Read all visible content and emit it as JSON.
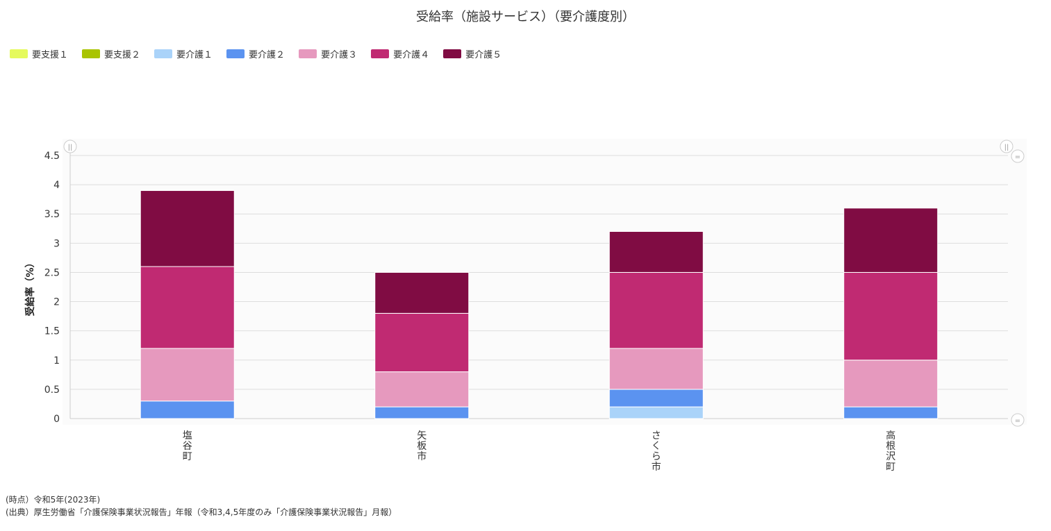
{
  "title": "受給率（施設サービス）（要介護度別）",
  "legend": [
    {
      "name": "要支援１",
      "color": "#e5fa5c"
    },
    {
      "name": "要支援２",
      "color": "#a9c400"
    },
    {
      "name": "要介護１",
      "color": "#aad3f9"
    },
    {
      "name": "要介護２",
      "color": "#5b93f0"
    },
    {
      "name": "要介護３",
      "color": "#e699be"
    },
    {
      "name": "要介護４",
      "color": "#c02a72"
    },
    {
      "name": "要介護５",
      "color": "#800c43"
    }
  ],
  "chart_data": {
    "type": "bar",
    "stacked": true,
    "categories": [
      "塩谷町",
      "矢板市",
      "さくら市",
      "高根沢町"
    ],
    "ylabel": "受給率（%）",
    "ylim": [
      0,
      4.5
    ],
    "yticks": [
      "0",
      "0.5",
      "1",
      "1.5",
      "2",
      "2.5",
      "3",
      "3.5",
      "4",
      "4.5"
    ],
    "series": [
      {
        "name": "要支援１",
        "values": [
          0,
          0,
          0,
          0
        ]
      },
      {
        "name": "要支援２",
        "values": [
          0,
          0,
          0,
          0
        ]
      },
      {
        "name": "要介護１",
        "values": [
          0,
          0,
          0.2,
          0
        ]
      },
      {
        "name": "要介護２",
        "values": [
          0.3,
          0.2,
          0.3,
          0.2
        ]
      },
      {
        "name": "要介護３",
        "values": [
          0.9,
          0.6,
          0.7,
          0.8
        ]
      },
      {
        "name": "要介護４",
        "values": [
          1.4,
          1.0,
          1.3,
          1.5
        ]
      },
      {
        "name": "要介護５",
        "values": [
          1.3,
          0.7,
          0.7,
          1.1
        ]
      }
    ],
    "grid": true,
    "legend_position": "top-left"
  },
  "footer": {
    "date_line": "(時点）令和5年(2023年)",
    "source_line": "(出典）厚生労働省「介護保険事業状況報告」年報（令和3,4,5年度のみ「介護保険事業状況報告」月報）"
  }
}
